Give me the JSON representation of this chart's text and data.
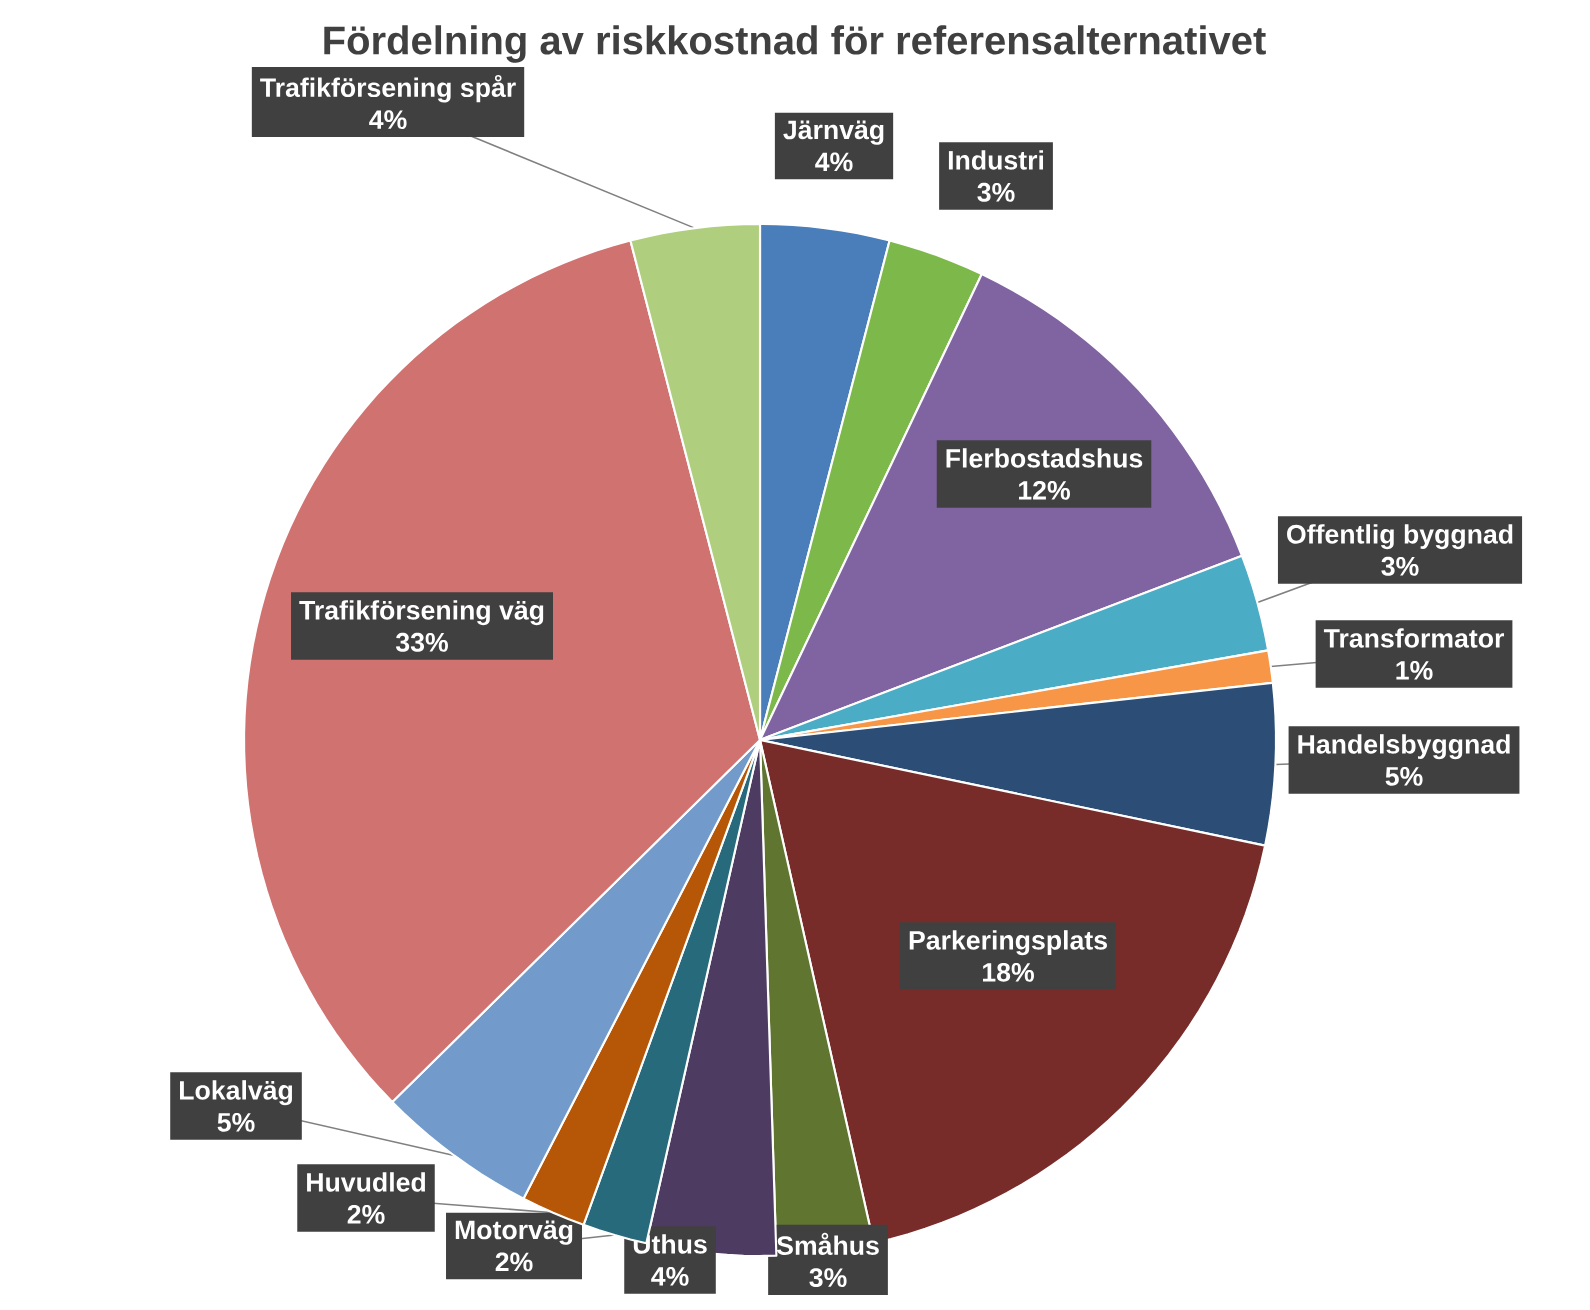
{
  "chart_data": {
    "type": "pie",
    "title": "Fördelning av riskkostnad för referensalternativet",
    "categories": [
      "Järnväg",
      "Industri",
      "Flerbostadshus",
      "Offentlig byggnad",
      "Transformator",
      "Handelsbyggnad",
      "Parkeringsplats",
      "Småhus",
      "Uthus",
      "Motorväg",
      "Huvudled",
      "Lokalväg",
      "Trafikförsening väg",
      "Trafikförsening spår"
    ],
    "values": [
      4,
      3,
      12,
      3,
      1,
      5,
      18,
      3,
      4,
      2,
      2,
      5,
      33,
      4
    ],
    "value_labels": [
      "4%",
      "3%",
      "12%",
      "3%",
      "1%",
      "5%",
      "18%",
      "3%",
      "4%",
      "2%",
      "2%",
      "5%",
      "33%",
      "4%"
    ],
    "colors": [
      "#4a7ebb",
      "#7cb84a",
      "#8064a2",
      "#4bacc6",
      "#f79646",
      "#2c4d75",
      "#772c2a",
      "#5f7530",
      "#4d3b62",
      "#276a7c",
      "#b65708",
      "#729aca",
      "#d07270",
      "#afcf7f"
    ]
  }
}
